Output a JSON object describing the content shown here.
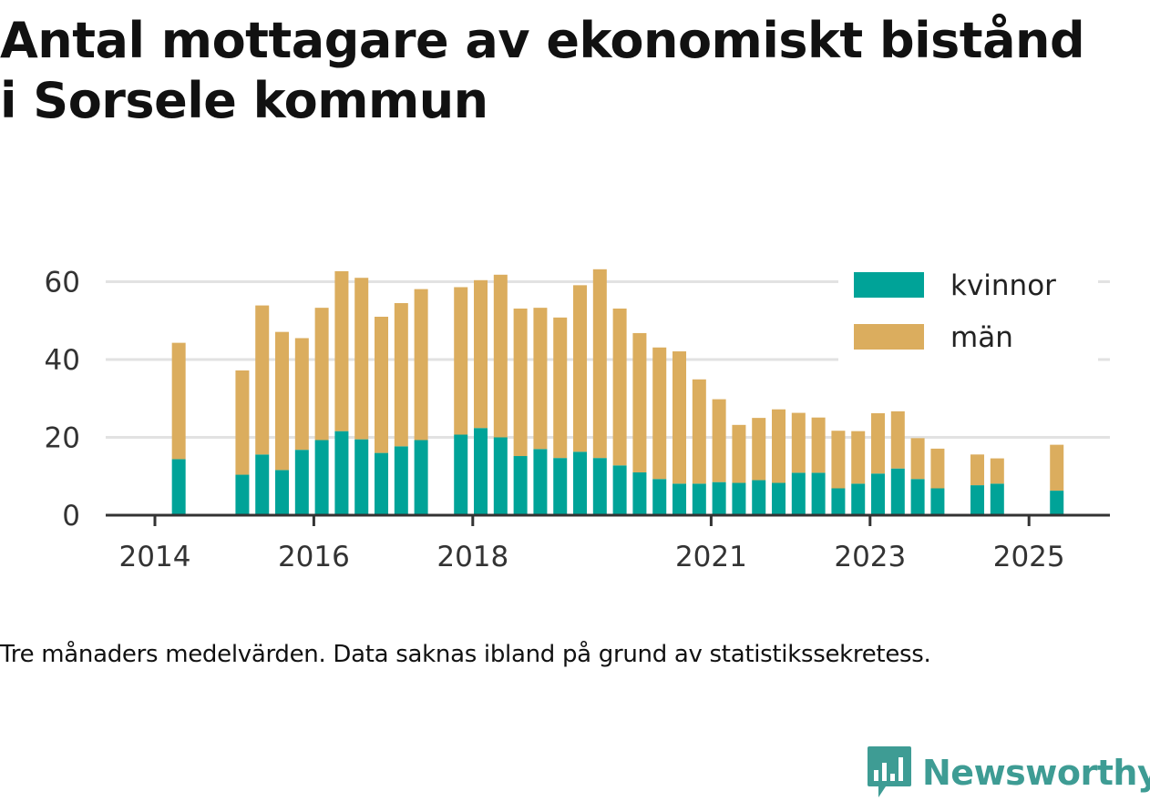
{
  "title_line1": "Antal mottagare av ekonomiskt bistånd",
  "title_line2": "i Sorsele kommun",
  "note": "Tre månaders medelvärden. Data saknas ibland på grund av statistikssekretess.",
  "brand": {
    "name": "Newsworthy",
    "icon": "bar-chart-bubble-icon",
    "color": "#3e9c94"
  },
  "chart_data": {
    "type": "bar",
    "stacked": true,
    "title": "Antal mottagare av ekonomiskt bistånd i Sorsele kommun",
    "xlabel": "",
    "ylabel": "",
    "x_ticks": [
      "2014",
      "2016",
      "2018",
      "2021",
      "2023",
      "2025"
    ],
    "x_tick_years": [
      2014,
      2016,
      2018,
      2021,
      2023,
      2025
    ],
    "y_ticks": [
      0,
      20,
      40,
      60
    ],
    "ylim": [
      0,
      64
    ],
    "xlim": [
      2013.3,
      2026.0
    ],
    "grid": "horizontal",
    "legend_position": "top-right",
    "periods": [
      2014.3,
      2015.1,
      2015.35,
      2015.6,
      2015.85,
      2016.1,
      2016.35,
      2016.6,
      2016.85,
      2017.1,
      2017.35,
      2017.85,
      2018.1,
      2018.35,
      2018.6,
      2018.85,
      2019.1,
      2019.35,
      2019.6,
      2019.85,
      2020.1,
      2020.35,
      2020.6,
      2020.85,
      2021.1,
      2021.35,
      2021.6,
      2021.85,
      2022.1,
      2022.35,
      2022.6,
      2022.85,
      2023.1,
      2023.35,
      2023.6,
      2023.85,
      2024.35,
      2024.6,
      2025.35
    ],
    "series": [
      {
        "name": "kvinnor",
        "color": "#00a398",
        "values": [
          14.4,
          10.4,
          15.6,
          11.6,
          16.8,
          19.3,
          21.6,
          19.5,
          16.0,
          17.7,
          19.3,
          20.7,
          22.4,
          20.0,
          15.2,
          17.0,
          14.7,
          16.3,
          14.7,
          12.8,
          11.0,
          9.3,
          8.1,
          8.1,
          8.5,
          8.3,
          9.0,
          8.3,
          10.9,
          10.9,
          6.9,
          8.1,
          10.7,
          12.0,
          9.3,
          6.9,
          7.7,
          8.1,
          6.3
        ]
      },
      {
        "name": "män",
        "color": "#dbad5e",
        "values": [
          29.9,
          26.8,
          38.3,
          35.5,
          28.7,
          34.0,
          41.1,
          41.5,
          35.0,
          36.8,
          38.8,
          37.9,
          38.0,
          41.8,
          37.9,
          36.3,
          36.1,
          42.8,
          48.5,
          40.3,
          35.8,
          33.8,
          34.0,
          26.8,
          21.3,
          14.9,
          16.0,
          18.9,
          15.4,
          14.2,
          14.8,
          13.5,
          15.5,
          14.7,
          10.5,
          10.2,
          7.9,
          6.5,
          11.8
        ]
      }
    ]
  }
}
